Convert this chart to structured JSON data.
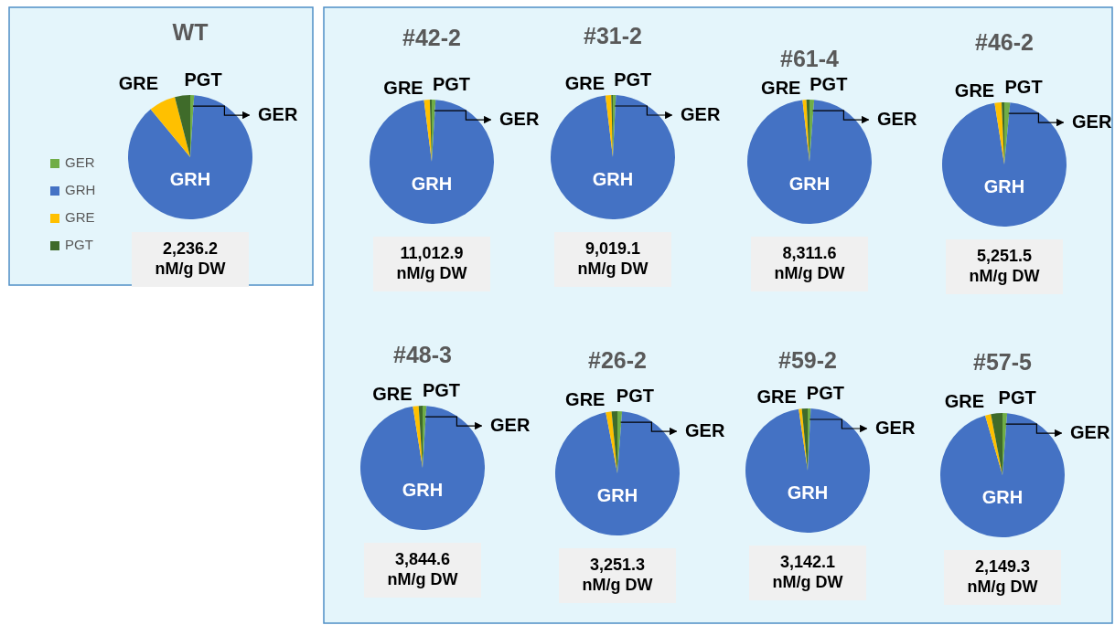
{
  "chart_data": [
    {
      "type": "pie",
      "title": "WT",
      "categories": [
        "GER",
        "GRH",
        "GRE",
        "PGT"
      ],
      "values": [
        1,
        88,
        7,
        4
      ],
      "colors": [
        "#70ad47",
        "#4472c4",
        "#ffc000",
        "#3f6b2a"
      ],
      "legend": "left",
      "annotations": [
        "2,236.2 nM/g DW"
      ]
    },
    {
      "type": "pie",
      "title": "#42-2",
      "categories": [
        "GER",
        "GRH",
        "GRE",
        "PGT"
      ],
      "values": [
        1,
        97,
        1.5,
        0.5
      ],
      "colors": [
        "#70ad47",
        "#4472c4",
        "#ffc000",
        "#3f6b2a"
      ],
      "annotations": [
        "11,012.9 nM/g DW"
      ]
    },
    {
      "type": "pie",
      "title": "#31-2",
      "categories": [
        "GER",
        "GRH",
        "GRE",
        "PGT"
      ],
      "values": [
        0.8,
        97.3,
        1.5,
        0.4
      ],
      "colors": [
        "#70ad47",
        "#4472c4",
        "#ffc000",
        "#3f6b2a"
      ],
      "annotations": [
        "9,019.1 nM/g DW"
      ]
    },
    {
      "type": "pie",
      "title": "#61-4",
      "categories": [
        "GER",
        "GRH",
        "GRE",
        "PGT"
      ],
      "values": [
        1.2,
        97,
        1,
        0.8
      ],
      "colors": [
        "#70ad47",
        "#4472c4",
        "#ffc000",
        "#3f6b2a"
      ],
      "annotations": [
        "8,311.6 nM/g DW"
      ]
    },
    {
      "type": "pie",
      "title": "#46-2",
      "categories": [
        "GER",
        "GRH",
        "GRE",
        "PGT"
      ],
      "values": [
        1.5,
        96,
        1.8,
        0.7
      ],
      "colors": [
        "#70ad47",
        "#4472c4",
        "#ffc000",
        "#3f6b2a"
      ],
      "annotations": [
        "5,251.5 nM/g DW"
      ]
    },
    {
      "type": "pie",
      "title": "#48-3",
      "categories": [
        "GER",
        "GRH",
        "GRE",
        "PGT"
      ],
      "values": [
        1,
        96.5,
        1.5,
        1
      ],
      "colors": [
        "#70ad47",
        "#4472c4",
        "#ffc000",
        "#3f6b2a"
      ],
      "annotations": [
        "3,844.6 nM/g DW"
      ]
    },
    {
      "type": "pie",
      "title": "#26-2",
      "categories": [
        "GER",
        "GRH",
        "GRE",
        "PGT"
      ],
      "values": [
        1.2,
        95.8,
        1.5,
        1.5
      ],
      "colors": [
        "#70ad47",
        "#4472c4",
        "#ffc000",
        "#3f6b2a"
      ],
      "annotations": [
        "3,251.3 nM/g DW"
      ]
    },
    {
      "type": "pie",
      "title": "#59-2",
      "categories": [
        "GER",
        "GRH",
        "GRE",
        "PGT"
      ],
      "values": [
        0.8,
        96.9,
        0.8,
        1.5
      ],
      "colors": [
        "#70ad47",
        "#4472c4",
        "#ffc000",
        "#3f6b2a"
      ],
      "annotations": [
        "3,142.1 nM/g DW"
      ]
    },
    {
      "type": "pie",
      "title": "#57-5",
      "categories": [
        "GER",
        "GRH",
        "GRE",
        "PGT"
      ],
      "values": [
        1.2,
        94.3,
        1.5,
        3
      ],
      "colors": [
        "#70ad47",
        "#4472c4",
        "#ffc000",
        "#3f6b2a"
      ],
      "annotations": [
        "2,149.3 nM/g DW"
      ]
    }
  ]
}
